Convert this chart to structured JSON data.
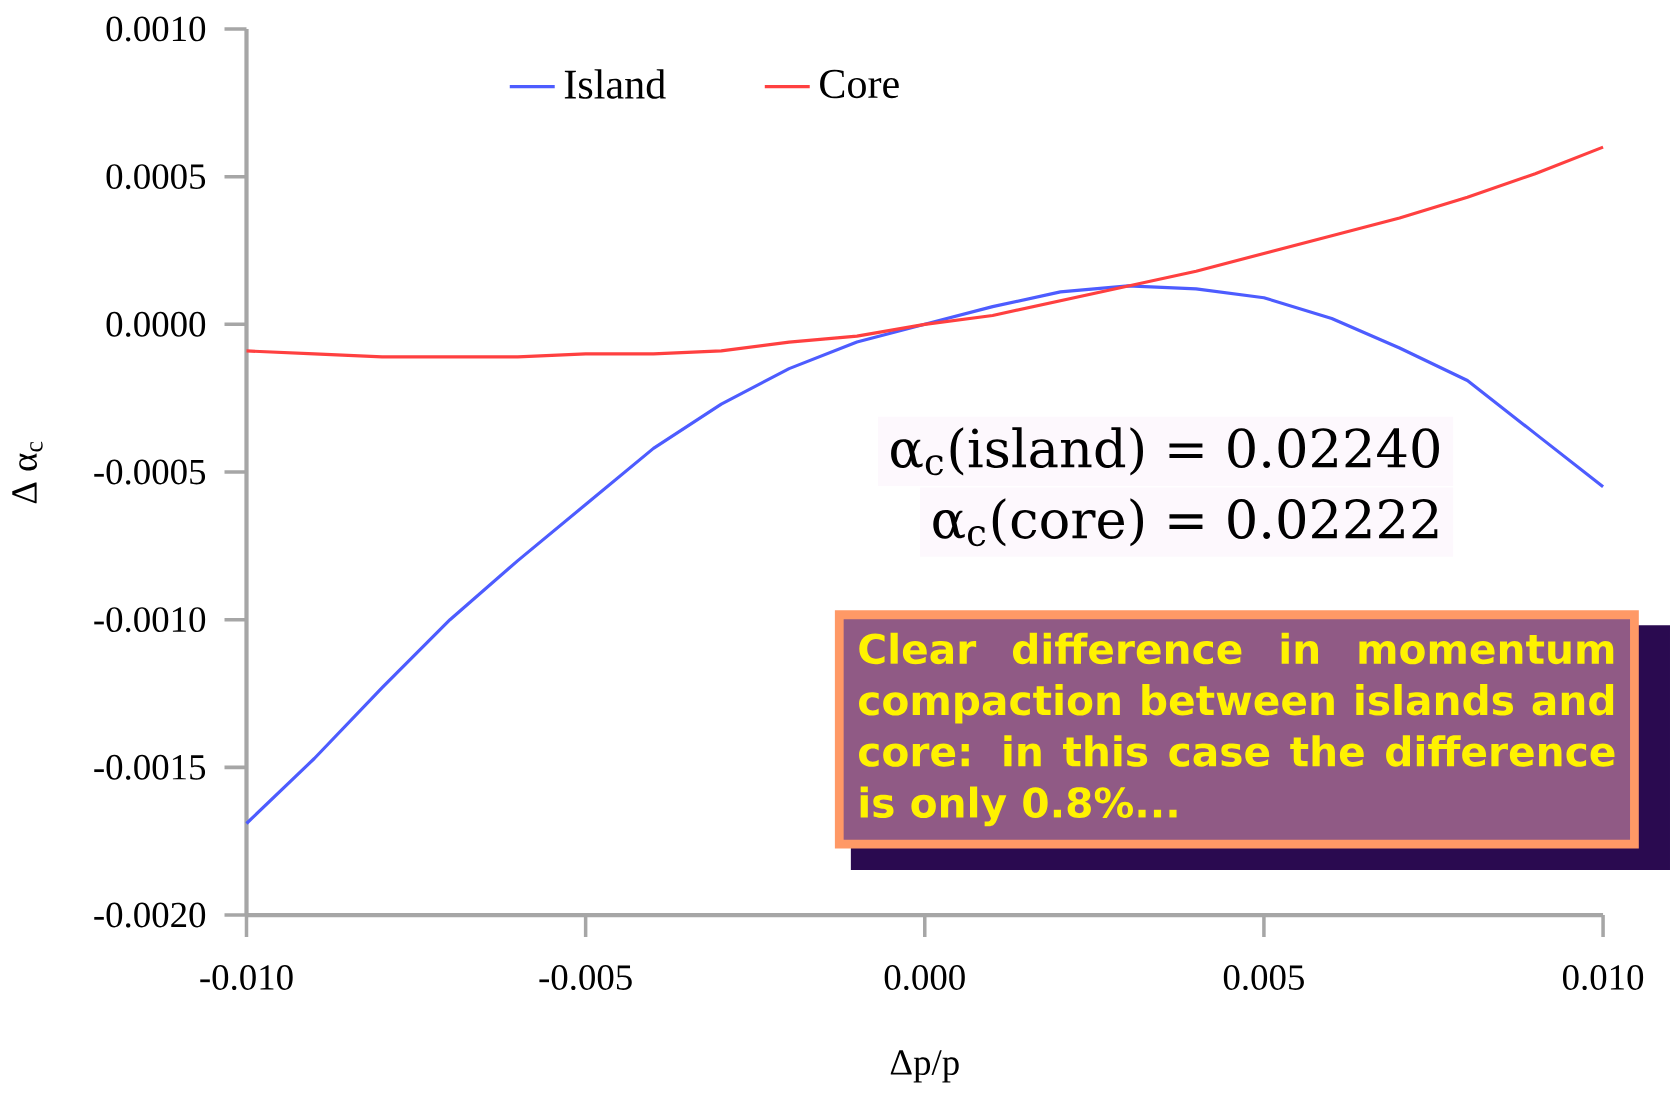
{
  "chart_data": {
    "type": "line",
    "xlabel": "Δp/p",
    "ylabel": "Δ α$_{c}$",
    "x": [
      -0.01,
      -0.009,
      -0.008,
      -0.007,
      -0.006,
      -0.005,
      -0.004,
      -0.003,
      -0.002,
      -0.001,
      0.0,
      0.001,
      0.002,
      0.003,
      0.004,
      0.005,
      0.006,
      0.007,
      0.008,
      0.009,
      0.01
    ],
    "series": [
      {
        "name": "Island",
        "color": "#4d5cff",
        "values": [
          -0.00169,
          -0.00147,
          -0.00123,
          -0.001,
          -0.0008,
          -0.00061,
          -0.00042,
          -0.00027,
          -0.00015,
          -6e-05,
          0.0,
          6e-05,
          0.00011,
          0.00013,
          0.00012,
          9e-05,
          2e-05,
          -8e-05,
          -0.00019,
          -0.00037,
          -0.00055
        ]
      },
      {
        "name": "Core",
        "color": "#ff4040",
        "values": [
          -9e-05,
          -0.0001,
          -0.00011,
          -0.00011,
          -0.00011,
          -0.0001,
          -0.0001,
          -9e-05,
          -6e-05,
          -4e-05,
          0.0,
          3e-05,
          8e-05,
          0.00013,
          0.00018,
          0.00024,
          0.0003,
          0.00036,
          0.00043,
          0.00051,
          0.0006
        ]
      }
    ],
    "xlim": [
      -0.01,
      0.01
    ],
    "xticks": [
      {
        "value": -0.01,
        "label": "-0.010"
      },
      {
        "value": -0.005,
        "label": "-0.005"
      },
      {
        "value": 0.0,
        "label": "0.000"
      },
      {
        "value": 0.005,
        "label": "0.005"
      },
      {
        "value": 0.01,
        "label": "0.010"
      }
    ],
    "ylim": [
      -0.002,
      0.001
    ],
    "yticks": [
      {
        "value": -0.002,
        "label": "-0.0020"
      },
      {
        "value": -0.0015,
        "label": "-0.0015"
      },
      {
        "value": -0.001,
        "label": "-0.0010"
      },
      {
        "value": -0.0005,
        "label": "-0.0005"
      },
      {
        "value": 0.0,
        "label": "0.0000"
      },
      {
        "value": 0.0005,
        "label": "0.0005"
      },
      {
        "value": 0.001,
        "label": "0.0010"
      }
    ],
    "legend": "top",
    "grid": false,
    "marker": "none",
    "line_style": "solid",
    "annotations": [
      "α$_{c}$(island) = 0.02240",
      "α$_{c}$(core) = 0.02222",
      "Clear difference in momentum compaction between islands and core: in this case the difference is only 0.8%..."
    ]
  }
}
